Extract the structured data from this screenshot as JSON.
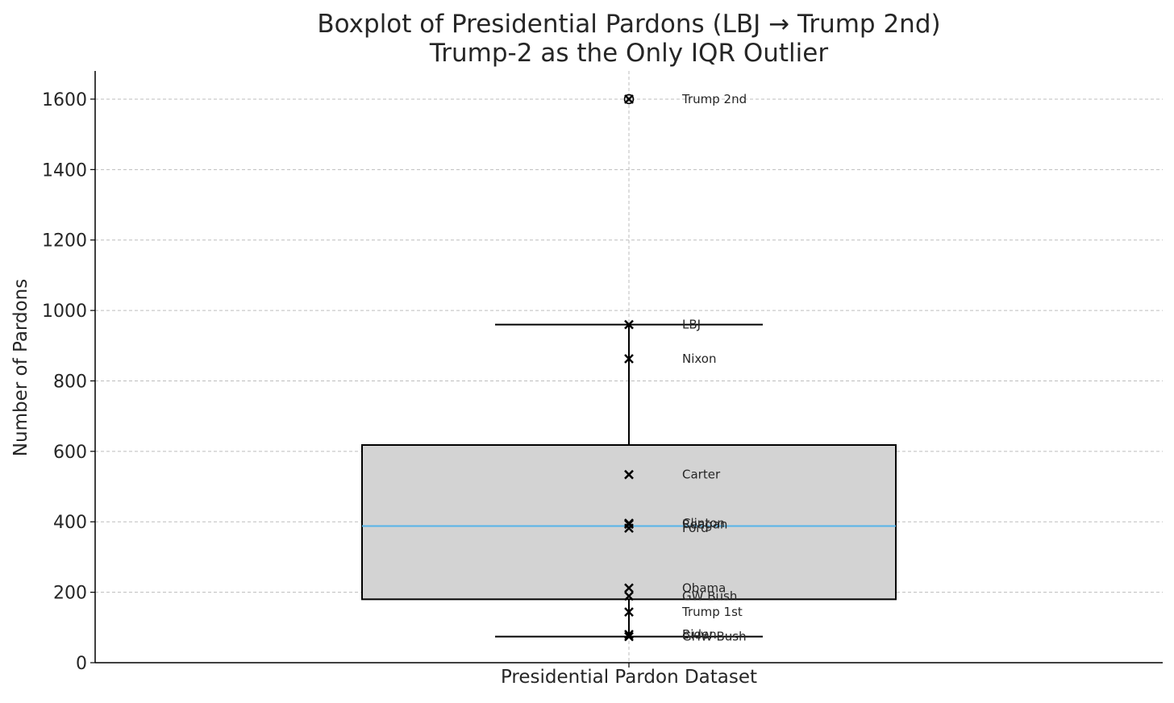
{
  "chart_data": {
    "type": "box",
    "title": "Boxplot of Presidential Pardons (LBJ → Trump 2nd)",
    "subtitle": "Trump-2 as the Only IQR Outlier",
    "xlabel": "Presidential Pardon Dataset",
    "ylabel": "Number of Pardons",
    "categories": [
      "Presidential Pardon Dataset"
    ],
    "ylim": [
      0,
      1680
    ],
    "yticks": [
      0,
      200,
      400,
      600,
      800,
      1000,
      1200,
      1400,
      1600
    ],
    "grid": true,
    "box": {
      "q1": 180,
      "median": 388,
      "q3": 618,
      "whisker_low": 74,
      "whisker_high": 960,
      "outliers": [
        1600
      ]
    },
    "points": [
      {
        "label": "Trump 2nd",
        "value": 1600
      },
      {
        "label": "LBJ",
        "value": 960
      },
      {
        "label": "Nixon",
        "value": 863
      },
      {
        "label": "Carter",
        "value": 534
      },
      {
        "label": "Clinton",
        "value": 396
      },
      {
        "label": "Reagan",
        "value": 393
      },
      {
        "label": "Ford",
        "value": 382
      },
      {
        "label": "Obama",
        "value": 212
      },
      {
        "label": "GW Bush",
        "value": 189
      },
      {
        "label": "Trump 1st",
        "value": 144
      },
      {
        "label": "Biden",
        "value": 80
      },
      {
        "label": "GHW Bush",
        "value": 74
      }
    ],
    "colors": {
      "box_fill": "#d3d3d3",
      "box_edge": "#000000",
      "median": "#56b4e9",
      "grid": "#bdbdbd",
      "marker": "#000000",
      "text": "#262626"
    }
  }
}
